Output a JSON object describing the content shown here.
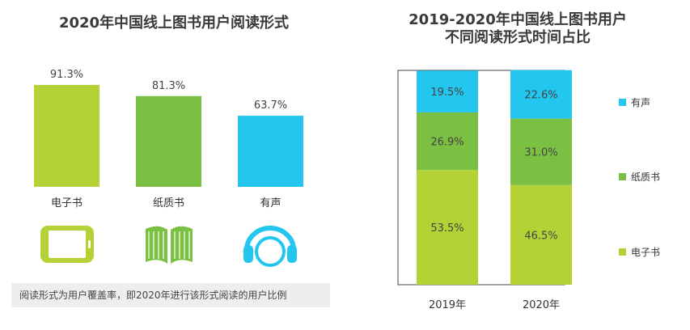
{
  "chart_data": [
    {
      "type": "bar",
      "title": "2020年中国线上图书用户阅读形式",
      "categories": [
        "电子书",
        "纸质书",
        "有声"
      ],
      "values": [
        91.3,
        81.3,
        63.7
      ],
      "value_labels": [
        "91.3%",
        "81.3%",
        "63.7%"
      ],
      "colors": [
        "#b4d235",
        "#7cc043",
        "#22c6ee"
      ],
      "ylim": [
        0,
        100
      ],
      "icons": [
        "tablet-icon",
        "open-book-icon",
        "headphones-icon"
      ]
    },
    {
      "type": "stacked-bar",
      "title_lines": [
        "2019-2020年中国线上图书用户",
        "不同阅读形式时间占比"
      ],
      "categories": [
        "2019年",
        "2020年"
      ],
      "series": [
        {
          "name": "电子书",
          "values": [
            53.5,
            46.5
          ],
          "labels": [
            "53.5%",
            "46.5%"
          ],
          "color": "#b4d235"
        },
        {
          "name": "纸质书",
          "values": [
            26.9,
            31.0
          ],
          "labels": [
            "26.9%",
            "31.0%"
          ],
          "color": "#7cc043"
        },
        {
          "name": "有声",
          "values": [
            19.5,
            22.6
          ],
          "labels": [
            "19.5%",
            "22.6%"
          ],
          "color": "#22c6ee"
        }
      ],
      "legend": [
        "有声",
        "纸质书",
        "电子书"
      ],
      "legend_placement": "right",
      "ylim": [
        0,
        100
      ]
    }
  ],
  "note": "阅读形式为用户覆盖率，即2020年进行该形式阅读的用户比例"
}
